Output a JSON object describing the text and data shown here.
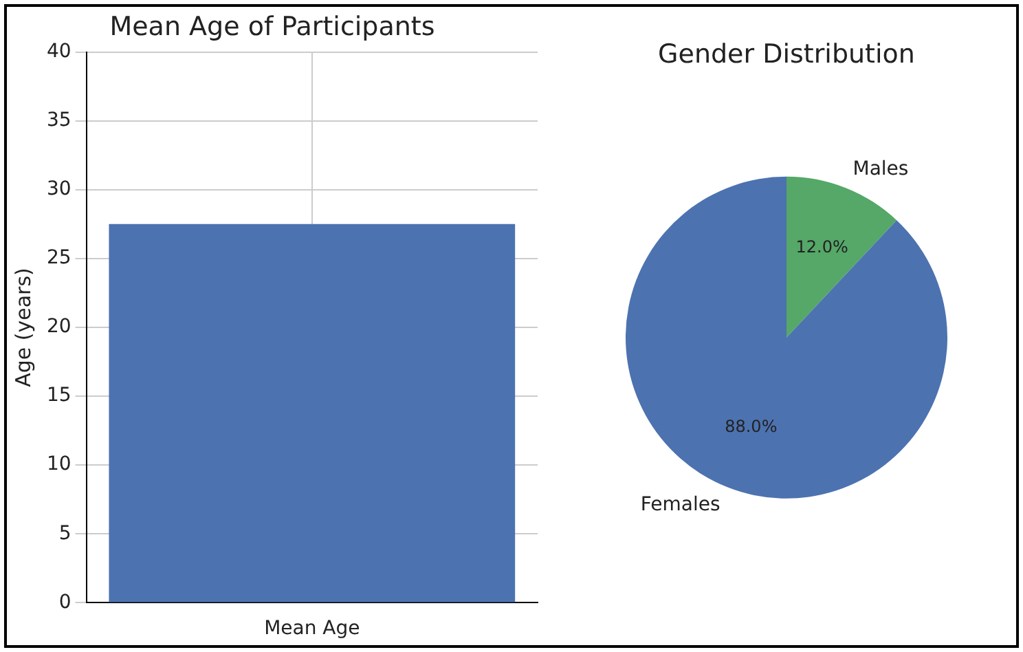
{
  "chart_data": [
    {
      "type": "bar",
      "title": "Mean Age of Participants",
      "ylabel": "Age (years)",
      "categories": [
        "Mean Age"
      ],
      "values": [
        27.5
      ],
      "color": "#4c72b0",
      "ylim": [
        0,
        40
      ],
      "yticks": [
        0,
        5,
        10,
        15,
        20,
        25,
        30,
        35,
        40
      ],
      "grid": true,
      "legend": false
    },
    {
      "type": "pie",
      "title": "Gender Distribution",
      "categories": [
        "Males",
        "Females"
      ],
      "values": [
        12,
        88
      ],
      "colors": [
        "#55a868",
        "#4c72b0"
      ],
      "value_labels": [
        "12.0%",
        "88.0%"
      ],
      "legend": false
    }
  ]
}
